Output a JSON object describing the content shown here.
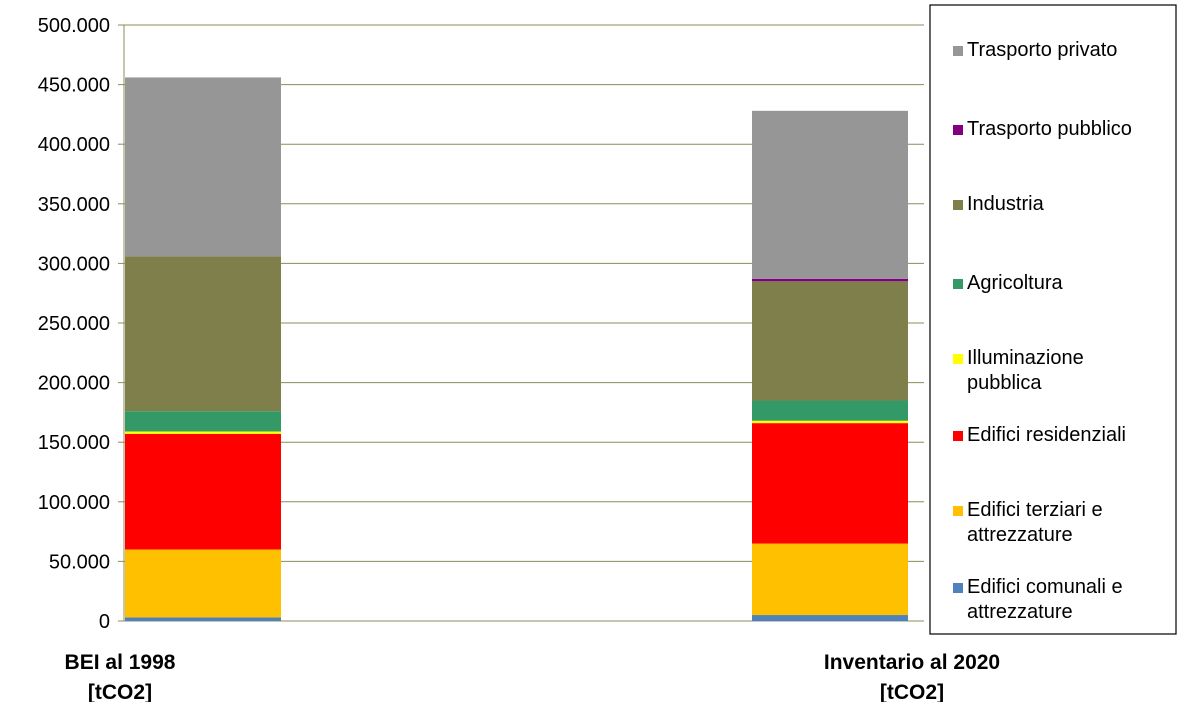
{
  "chart_data": {
    "type": "bar",
    "stacked": true,
    "categories": [
      [
        "BEI al 1998",
        "[tCO2]"
      ],
      [
        "Inventario al 2020",
        "[tCO2]"
      ]
    ],
    "ylim": [
      0,
      500000
    ],
    "yticks": [
      "0",
      "50.000",
      "100.000",
      "150.000",
      "200.000",
      "250.000",
      "300.000",
      "350.000",
      "400.000",
      "450.000",
      "500.000"
    ],
    "grid": true,
    "legend_position": "right",
    "series": [
      {
        "name": [
          "Edifici comunali e",
          "attrezzature"
        ],
        "color": "#4f81bd",
        "values": [
          3000,
          5000
        ]
      },
      {
        "name": [
          "Edifici terziari e",
          "attrezzature"
        ],
        "color": "#ffc000",
        "values": [
          57000,
          60000
        ]
      },
      {
        "name": [
          "Edifici residenziali"
        ],
        "color": "#ff0000",
        "values": [
          97000,
          101000
        ]
      },
      {
        "name": [
          "Illuminazione",
          "pubblica"
        ],
        "color": "#ffff00",
        "values": [
          2000,
          2000
        ]
      },
      {
        "name": [
          "Agricoltura"
        ],
        "color": "#339966",
        "values": [
          17000,
          17000
        ]
      },
      {
        "name": [
          "Industria"
        ],
        "color": "#7f7f4c",
        "values": [
          130000,
          100000
        ]
      },
      {
        "name": [
          "Trasporto pubblico"
        ],
        "color": "#800080",
        "values": [
          0,
          2000
        ]
      },
      {
        "name": [
          "Trasporto privato"
        ],
        "color": "#969696",
        "values": [
          150000,
          141000
        ]
      }
    ]
  }
}
